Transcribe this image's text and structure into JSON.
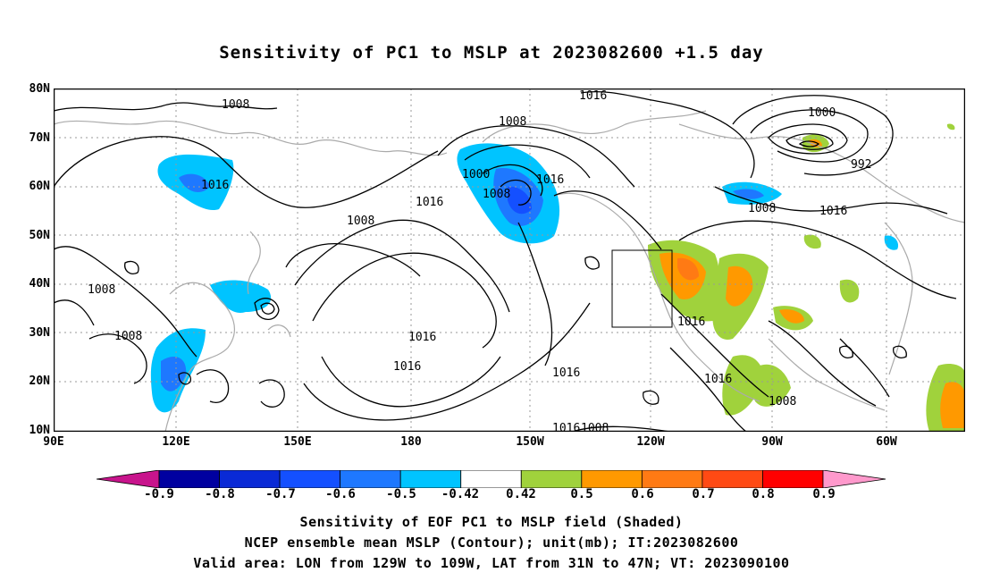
{
  "title": "Sensitivity of PC1 to MSLP at 2023082600 +1.5 day",
  "lat_labels": [
    "80N",
    "70N",
    "60N",
    "50N",
    "40N",
    "30N",
    "20N",
    "10N"
  ],
  "lon_labels": [
    "90E",
    "120E",
    "150E",
    "180",
    "150W",
    "120W",
    "90W",
    "60W"
  ],
  "contour_labels": [
    "1008",
    "1016",
    "1008",
    "1016",
    "1000",
    "1008",
    "1016",
    "1016",
    "1008",
    "1016",
    "1000",
    "992",
    "1008",
    "1016",
    "1008",
    "1008",
    "1016",
    "1016",
    "1016",
    "1016",
    "1016",
    "1008",
    "1008"
  ],
  "colorbar": {
    "labels": [
      "-0.9",
      "-0.8",
      "-0.7",
      "-0.6",
      "-0.5",
      "-0.42",
      "0.42",
      "0.5",
      "0.6",
      "0.7",
      "0.8",
      "0.9"
    ],
    "colors": [
      "#0000a0",
      "#0a2ad6",
      "#1450ff",
      "#1e78ff",
      "#00c4ff",
      "#ffffff",
      "#a0d23c",
      "#ff9900",
      "#ff7a14",
      "#ff4a14",
      "#ff0000"
    ],
    "low_end_color": "#c8148c",
    "high_end_color": "#ff99cc"
  },
  "footer": {
    "line1": "Sensitivity of EOF PC1 to MSLP field (Shaded)",
    "line2": "NCEP ensemble mean MSLP (Contour); unit(mb); IT:2023082600",
    "line3": "Valid area: LON from 129W to 109W, LAT from 31N to 47N; VT: 2023090100"
  }
}
